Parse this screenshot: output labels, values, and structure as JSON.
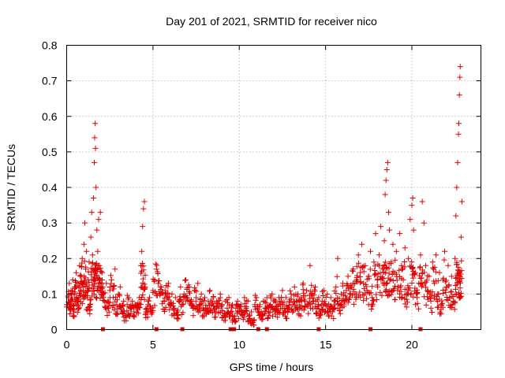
{
  "chart_data": {
    "type": "scatter",
    "title": "Day 201 of 2021, SRMTID for receiver nico",
    "xlabel": "GPS time / hours",
    "ylabel": "SRMTID / TECUs",
    "xlim": [
      0,
      24
    ],
    "ylim": [
      0,
      0.8
    ],
    "xticks": [
      0,
      5,
      10,
      15,
      20
    ],
    "yticks": [
      0,
      0.1,
      0.2,
      0.3,
      0.4,
      0.5,
      0.6,
      0.7,
      0.8
    ],
    "grid": true,
    "marker": "+",
    "color": "#e00000",
    "series": [
      {
        "name": "SRMTID",
        "points": [
          [
            0.0,
            0.07
          ],
          [
            0.1,
            0.09
          ],
          [
            0.15,
            0.13
          ],
          [
            0.2,
            0.06
          ],
          [
            0.25,
            0.11
          ],
          [
            0.3,
            0.08
          ],
          [
            0.35,
            0.14
          ],
          [
            0.4,
            0.05
          ],
          [
            0.45,
            0.1
          ],
          [
            0.5,
            0.12
          ],
          [
            0.55,
            0.16
          ],
          [
            0.6,
            0.07
          ],
          [
            0.65,
            0.13
          ],
          [
            0.7,
            0.09
          ],
          [
            0.75,
            0.18
          ],
          [
            0.8,
            0.11
          ],
          [
            0.85,
            0.15
          ],
          [
            0.9,
            0.2
          ],
          [
            0.95,
            0.12
          ],
          [
            1.0,
            0.24
          ],
          [
            1.05,
            0.3
          ],
          [
            1.1,
            0.17
          ],
          [
            1.15,
            0.22
          ],
          [
            1.2,
            0.09
          ],
          [
            1.25,
            0.14
          ],
          [
            1.3,
            0.19
          ],
          [
            1.35,
            0.07
          ],
          [
            1.4,
            0.26
          ],
          [
            1.45,
            0.33
          ],
          [
            1.5,
            0.21
          ],
          [
            1.55,
            0.37
          ],
          [
            1.6,
            0.47
          ],
          [
            1.62,
            0.54
          ],
          [
            1.65,
            0.58
          ],
          [
            1.67,
            0.51
          ],
          [
            1.7,
            0.4
          ],
          [
            1.75,
            0.28
          ],
          [
            1.8,
            0.22
          ],
          [
            1.85,
            0.31
          ],
          [
            1.9,
            0.18
          ],
          [
            1.95,
            0.33
          ],
          [
            2.0,
            0.12
          ],
          [
            2.05,
            0.16
          ],
          [
            2.1,
            0.1
          ],
          [
            2.2,
            0.08
          ],
          [
            2.3,
            0.13
          ],
          [
            2.4,
            0.06
          ],
          [
            2.5,
            0.11
          ],
          [
            2.6,
            0.14
          ],
          [
            2.7,
            0.09
          ],
          [
            2.8,
            0.17
          ],
          [
            2.9,
            0.07
          ],
          [
            3.0,
            0.1
          ],
          [
            3.1,
            0.12
          ],
          [
            3.2,
            0.05
          ],
          [
            3.3,
            0.08
          ],
          [
            3.4,
            0.04
          ],
          [
            3.5,
            0.07
          ],
          [
            3.6,
            0.09
          ],
          [
            3.7,
            0.06
          ],
          [
            3.8,
            0.08
          ],
          [
            3.9,
            0.05
          ],
          [
            4.0,
            0.07
          ],
          [
            4.1,
            0.06
          ],
          [
            4.2,
            0.09
          ],
          [
            4.3,
            0.18
          ],
          [
            4.35,
            0.22
          ],
          [
            4.4,
            0.29
          ],
          [
            4.45,
            0.34
          ],
          [
            4.5,
            0.36
          ],
          [
            4.55,
            0.12
          ],
          [
            4.6,
            0.05
          ],
          [
            4.7,
            0.07
          ],
          [
            4.8,
            0.09
          ],
          [
            4.9,
            0.06
          ],
          [
            5.0,
            0.11
          ],
          [
            5.1,
            0.14
          ],
          [
            5.2,
            0.17
          ],
          [
            5.3,
            0.13
          ],
          [
            5.4,
            0.1
          ],
          [
            5.5,
            0.12
          ],
          [
            5.6,
            0.08
          ],
          [
            5.7,
            0.11
          ],
          [
            5.8,
            0.09
          ],
          [
            5.9,
            0.13
          ],
          [
            6.0,
            0.07
          ],
          [
            6.1,
            0.1
          ],
          [
            6.2,
            0.06
          ],
          [
            6.3,
            0.09
          ],
          [
            6.4,
            0.05
          ],
          [
            6.5,
            0.08
          ],
          [
            6.6,
            0.12
          ],
          [
            6.7,
            0.07
          ],
          [
            6.8,
            0.1
          ],
          [
            6.9,
            0.14
          ],
          [
            7.0,
            0.09
          ],
          [
            7.1,
            0.12
          ],
          [
            7.2,
            0.08
          ],
          [
            7.3,
            0.06
          ],
          [
            7.4,
            0.11
          ],
          [
            7.5,
            0.09
          ],
          [
            7.6,
            0.13
          ],
          [
            7.7,
            0.07
          ],
          [
            7.8,
            0.1
          ],
          [
            7.9,
            0.06
          ],
          [
            8.0,
            0.09
          ],
          [
            8.1,
            0.05
          ],
          [
            8.2,
            0.08
          ],
          [
            8.3,
            0.11
          ],
          [
            8.4,
            0.07
          ],
          [
            8.5,
            0.09
          ],
          [
            8.6,
            0.05
          ],
          [
            8.7,
            0.08
          ],
          [
            8.8,
            0.06
          ],
          [
            8.9,
            0.1
          ],
          [
            9.0,
            0.07
          ],
          [
            9.1,
            0.04
          ],
          [
            9.2,
            0.08
          ],
          [
            9.3,
            0.06
          ],
          [
            9.4,
            0.09
          ],
          [
            9.5,
            0.05
          ],
          [
            9.6,
            0.07
          ],
          [
            9.7,
            0.03
          ],
          [
            9.8,
            0.06
          ],
          [
            9.9,
            0.08
          ],
          [
            10.0,
            0.05
          ],
          [
            10.1,
            0.07
          ],
          [
            10.2,
            0.04
          ],
          [
            10.3,
            0.09
          ],
          [
            10.4,
            0.06
          ],
          [
            10.5,
            0.08
          ],
          [
            10.6,
            0.03
          ],
          [
            10.7,
            0.05
          ],
          [
            10.8,
            0.02
          ],
          [
            10.9,
            0.07
          ],
          [
            11.0,
            0.09
          ],
          [
            11.1,
            0.05
          ],
          [
            11.2,
            0.07
          ],
          [
            11.3,
            0.04
          ],
          [
            11.4,
            0.08
          ],
          [
            11.5,
            0.06
          ],
          [
            11.6,
            0.09
          ],
          [
            11.7,
            0.05
          ],
          [
            11.8,
            0.07
          ],
          [
            11.9,
            0.1
          ],
          [
            12.0,
            0.06
          ],
          [
            12.1,
            0.08
          ],
          [
            12.2,
            0.05
          ],
          [
            12.3,
            0.09
          ],
          [
            12.4,
            0.07
          ],
          [
            12.5,
            0.11
          ],
          [
            12.6,
            0.06
          ],
          [
            12.7,
            0.09
          ],
          [
            12.8,
            0.05
          ],
          [
            12.9,
            0.08
          ],
          [
            13.0,
            0.1
          ],
          [
            13.1,
            0.07
          ],
          [
            13.2,
            0.12
          ],
          [
            13.3,
            0.08
          ],
          [
            13.4,
            0.1
          ],
          [
            13.5,
            0.06
          ],
          [
            13.6,
            0.09
          ],
          [
            13.7,
            0.13
          ],
          [
            13.8,
            0.08
          ],
          [
            13.9,
            0.11
          ],
          [
            14.0,
            0.07
          ],
          [
            14.1,
            0.18
          ],
          [
            14.2,
            0.1
          ],
          [
            14.3,
            0.08
          ],
          [
            14.4,
            0.12
          ],
          [
            14.5,
            0.06
          ],
          [
            14.6,
            0.09
          ],
          [
            14.7,
            0.05
          ],
          [
            14.8,
            0.08
          ],
          [
            14.9,
            0.11
          ],
          [
            15.0,
            0.07
          ],
          [
            15.1,
            0.1
          ],
          [
            15.2,
            0.06
          ],
          [
            15.3,
            0.09
          ],
          [
            15.4,
            0.05
          ],
          [
            15.5,
            0.08
          ],
          [
            15.6,
            0.12
          ],
          [
            15.7,
            0.2
          ],
          [
            15.8,
            0.07
          ],
          [
            15.9,
            0.1
          ],
          [
            16.0,
            0.13
          ],
          [
            16.1,
            0.08
          ],
          [
            16.2,
            0.11
          ],
          [
            16.3,
            0.15
          ],
          [
            16.4,
            0.09
          ],
          [
            16.5,
            0.12
          ],
          [
            16.6,
            0.17
          ],
          [
            16.7,
            0.1
          ],
          [
            16.8,
            0.14
          ],
          [
            16.9,
            0.21
          ],
          [
            17.0,
            0.16
          ],
          [
            17.1,
            0.24
          ],
          [
            17.2,
            0.13
          ],
          [
            17.3,
            0.18
          ],
          [
            17.4,
            0.11
          ],
          [
            17.5,
            0.15
          ],
          [
            17.6,
            0.22
          ],
          [
            17.7,
            0.09
          ],
          [
            17.8,
            0.19
          ],
          [
            17.9,
            0.27
          ],
          [
            18.0,
            0.14
          ],
          [
            18.1,
            0.21
          ],
          [
            18.2,
            0.29
          ],
          [
            18.3,
            0.17
          ],
          [
            18.4,
            0.25
          ],
          [
            18.45,
            0.38
          ],
          [
            18.5,
            0.42
          ],
          [
            18.55,
            0.45
          ],
          [
            18.6,
            0.47
          ],
          [
            18.65,
            0.33
          ],
          [
            18.7,
            0.28
          ],
          [
            18.8,
            0.19
          ],
          [
            18.9,
            0.24
          ],
          [
            19.0,
            0.16
          ],
          [
            19.1,
            0.22
          ],
          [
            19.2,
            0.12
          ],
          [
            19.3,
            0.27
          ],
          [
            19.4,
            0.18
          ],
          [
            19.5,
            0.14
          ],
          [
            19.6,
            0.23
          ],
          [
            19.7,
            0.1
          ],
          [
            19.8,
            0.2
          ],
          [
            19.9,
            0.31
          ],
          [
            20.0,
            0.35
          ],
          [
            20.05,
            0.37
          ],
          [
            20.1,
            0.28
          ],
          [
            20.2,
            0.16
          ],
          [
            20.3,
            0.09
          ],
          [
            20.4,
            0.13
          ],
          [
            20.5,
            0.21
          ],
          [
            20.6,
            0.36
          ],
          [
            20.7,
            0.3
          ],
          [
            20.8,
            0.18
          ],
          [
            20.9,
            0.11
          ],
          [
            21.0,
            0.15
          ],
          [
            21.1,
            0.08
          ],
          [
            21.2,
            0.19
          ],
          [
            21.3,
            0.13
          ],
          [
            21.4,
            0.21
          ],
          [
            21.5,
            0.1
          ],
          [
            21.6,
            0.16
          ],
          [
            21.7,
            0.07
          ],
          [
            21.8,
            0.14
          ],
          [
            21.9,
            0.22
          ],
          [
            22.0,
            0.12
          ],
          [
            22.1,
            0.18
          ],
          [
            22.2,
            0.09
          ],
          [
            22.3,
            0.15
          ],
          [
            22.4,
            0.08
          ],
          [
            22.5,
            0.2
          ],
          [
            22.55,
            0.32
          ],
          [
            22.6,
            0.4
          ],
          [
            22.65,
            0.47
          ],
          [
            22.7,
            0.55
          ],
          [
            22.72,
            0.58
          ],
          [
            22.75,
            0.66
          ],
          [
            22.78,
            0.71
          ],
          [
            22.8,
            0.74
          ],
          [
            22.85,
            0.26
          ],
          [
            22.9,
            0.36
          ]
        ]
      }
    ],
    "extra_scatter_seed": 20210720,
    "x_axis_markers": [
      2.1,
      5.2,
      6.7,
      9.5,
      9.7,
      11.1,
      11.6,
      14.6,
      17.6,
      20.5
    ]
  }
}
